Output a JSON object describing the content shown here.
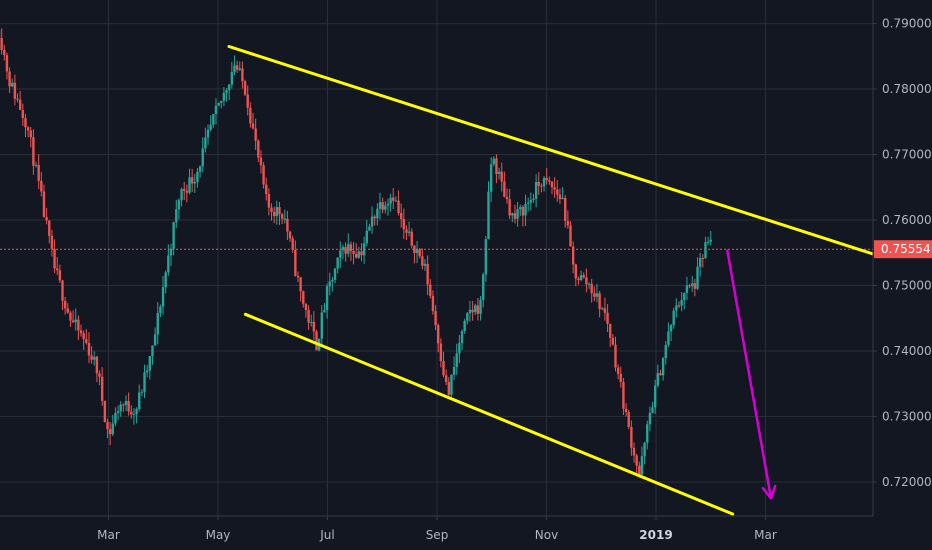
{
  "chart_data": {
    "type": "candlestick",
    "title": "",
    "xlabel": "",
    "ylabel": "",
    "ylim": [
      0.7148,
      0.7936
    ],
    "grid": true,
    "x_ticks": [
      {
        "label": "Mar",
        "t": 2.0,
        "bold": false
      },
      {
        "label": "May",
        "t": 4.0,
        "bold": false
      },
      {
        "label": "Jul",
        "t": 6.0,
        "bold": false
      },
      {
        "label": "Sep",
        "t": 8.0,
        "bold": false
      },
      {
        "label": "Nov",
        "t": 10.0,
        "bold": false
      },
      {
        "label": "2019",
        "t": 12.0,
        "bold": true
      },
      {
        "label": "Mar",
        "t": 14.0,
        "bold": false
      }
    ],
    "y_ticks": [
      {
        "label": "0.79000",
        "value": 0.79
      },
      {
        "label": "0.78000",
        "value": 0.78
      },
      {
        "label": "0.77000",
        "value": 0.77
      },
      {
        "label": "0.76000",
        "value": 0.76
      },
      {
        "label": "0.75000",
        "value": 0.75
      },
      {
        "label": "0.74000",
        "value": 0.74
      },
      {
        "label": "0.73000",
        "value": 0.73
      },
      {
        "label": "0.72000",
        "value": 0.72
      }
    ],
    "last_price": {
      "label": "0.75554",
      "value": 0.75554
    },
    "close_path": [
      [
        0.0,
        0.789
      ],
      [
        0.2,
        0.781
      ],
      [
        0.5,
        0.775
      ],
      [
        0.8,
        0.762
      ],
      [
        1.0,
        0.753
      ],
      [
        1.3,
        0.745
      ],
      [
        1.6,
        0.741
      ],
      [
        1.8,
        0.737
      ],
      [
        2.0,
        0.727
      ],
      [
        2.2,
        0.732
      ],
      [
        2.5,
        0.731
      ],
      [
        2.8,
        0.74
      ],
      [
        3.0,
        0.75
      ],
      [
        3.3,
        0.764
      ],
      [
        3.6,
        0.767
      ],
      [
        3.9,
        0.775
      ],
      [
        4.1,
        0.779
      ],
      [
        4.3,
        0.784
      ],
      [
        4.5,
        0.78
      ],
      [
        4.7,
        0.771
      ],
      [
        4.9,
        0.762
      ],
      [
        5.2,
        0.761
      ],
      [
        5.5,
        0.749
      ],
      [
        5.8,
        0.741
      ],
      [
        6.0,
        0.749
      ],
      [
        6.3,
        0.756
      ],
      [
        6.6,
        0.755
      ],
      [
        6.9,
        0.762
      ],
      [
        7.2,
        0.764
      ],
      [
        7.4,
        0.758
      ],
      [
        7.6,
        0.756
      ],
      [
        7.8,
        0.752
      ],
      [
        8.0,
        0.743
      ],
      [
        8.2,
        0.733
      ],
      [
        8.4,
        0.741
      ],
      [
        8.6,
        0.746
      ],
      [
        8.8,
        0.747
      ],
      [
        9.0,
        0.77
      ],
      [
        9.2,
        0.765
      ],
      [
        9.4,
        0.76
      ],
      [
        9.7,
        0.763
      ],
      [
        9.9,
        0.766
      ],
      [
        10.1,
        0.765
      ],
      [
        10.3,
        0.763
      ],
      [
        10.5,
        0.752
      ],
      [
        10.8,
        0.75
      ],
      [
        11.1,
        0.745
      ],
      [
        11.3,
        0.737
      ],
      [
        11.5,
        0.728
      ],
      [
        11.7,
        0.721
      ],
      [
        11.9,
        0.731
      ],
      [
        12.1,
        0.738
      ],
      [
        12.3,
        0.745
      ],
      [
        12.5,
        0.749
      ],
      [
        12.7,
        0.75
      ],
      [
        12.9,
        0.756
      ],
      [
        13.0,
        0.757
      ]
    ],
    "trendlines": [
      {
        "name": "upper-channel-line",
        "points": [
          [
            4.2,
            0.7865
          ],
          [
            16.6,
            0.7531
          ]
        ],
        "color": "#ffff00"
      },
      {
        "name": "lower-channel-line",
        "points": [
          [
            4.5,
            0.7456
          ],
          [
            13.4,
            0.7151
          ]
        ],
        "color": "#ffff00"
      }
    ],
    "arrow": {
      "from": [
        13.3,
        0.7555
      ],
      "to": [
        14.1,
        0.7175
      ],
      "color": "#d500d5"
    },
    "colors": {
      "background": "#131722",
      "grid": "#2a2e39",
      "up": "#26a69a",
      "down": "#ef5350",
      "axis_text": "#b2b5be",
      "price_line": "#ef5350"
    }
  }
}
